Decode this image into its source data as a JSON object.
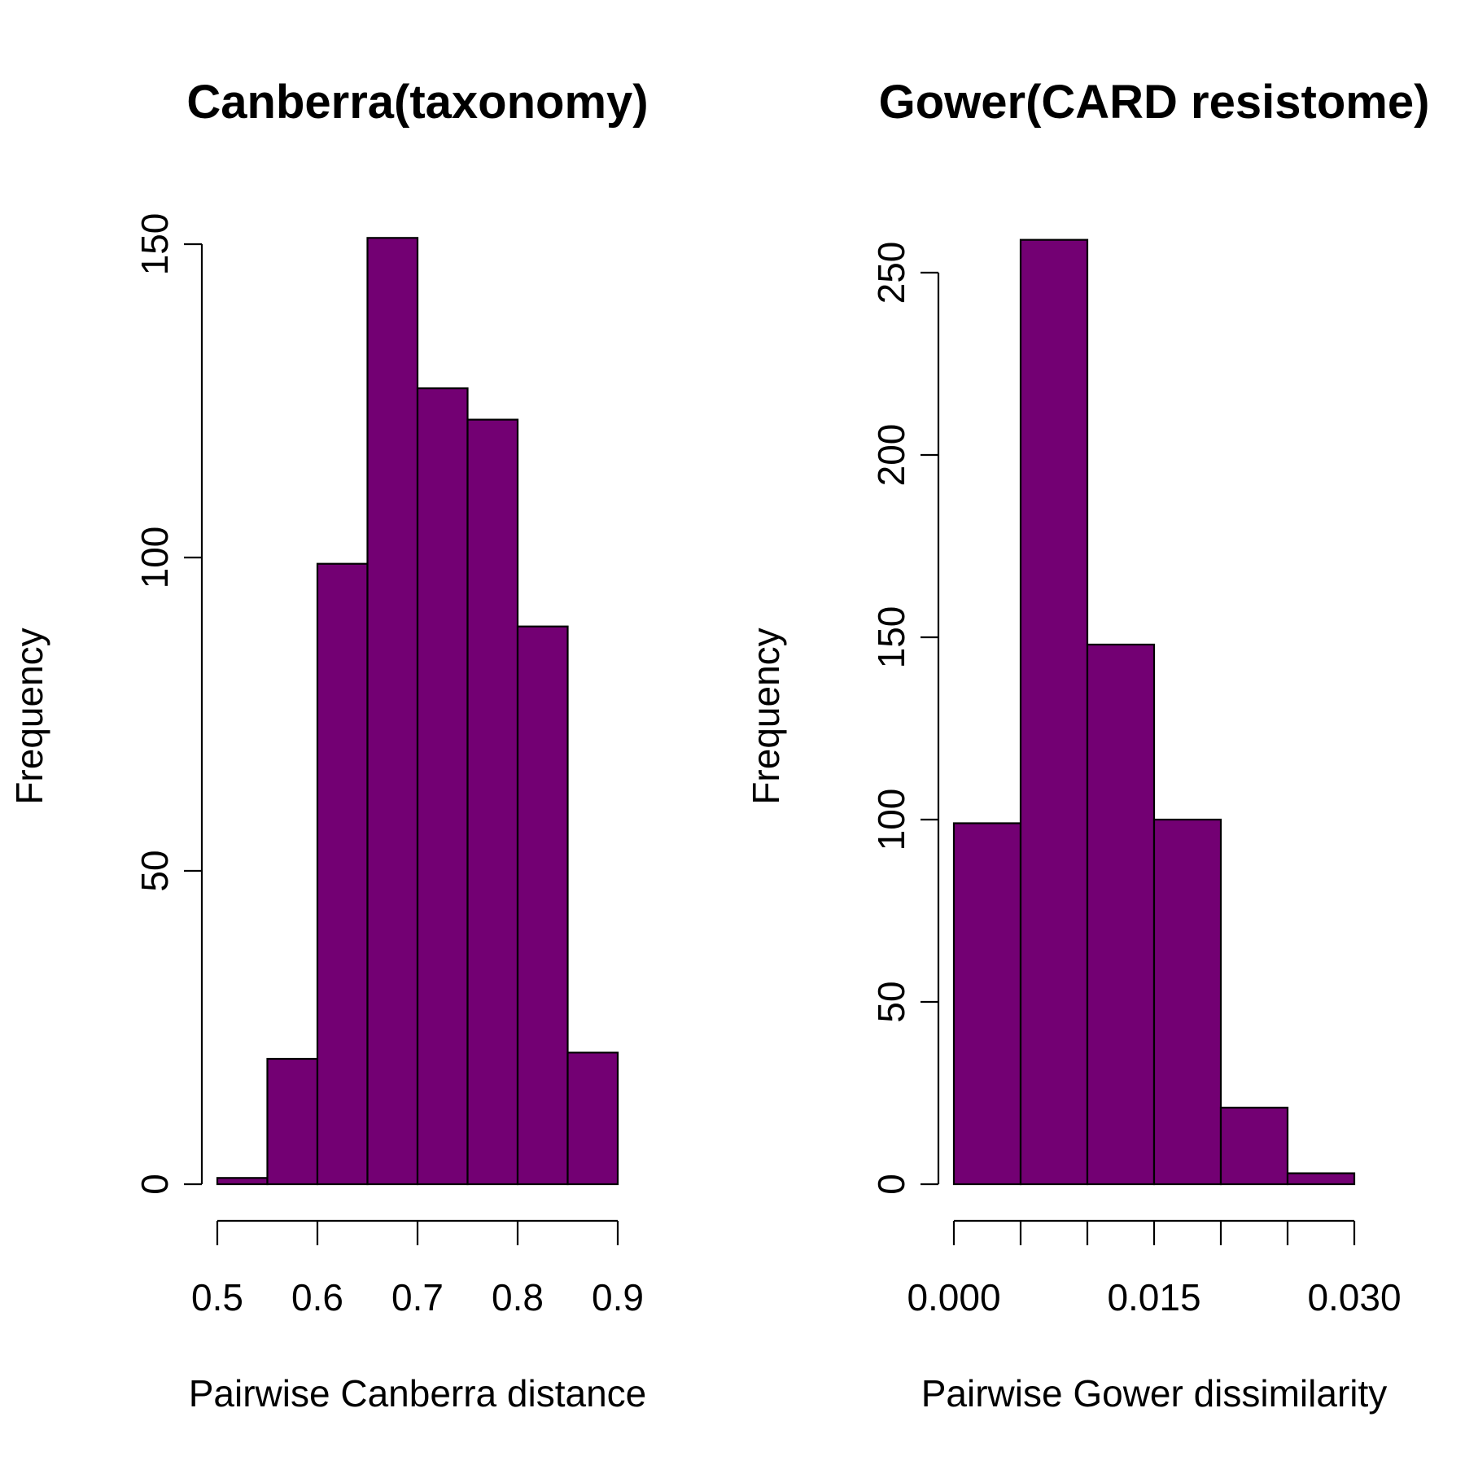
{
  "chart_data": [
    {
      "type": "bar",
      "title": "Canberra(taxonomy)",
      "xlabel": "Pairwise Canberra distance",
      "ylabel": "Frequency",
      "color": "#730073",
      "bins": [
        {
          "x0": 0.5,
          "x1": 0.55,
          "count": 1
        },
        {
          "x0": 0.55,
          "x1": 0.6,
          "count": 20
        },
        {
          "x0": 0.6,
          "x1": 0.65,
          "count": 99
        },
        {
          "x0": 0.65,
          "x1": 0.7,
          "count": 151
        },
        {
          "x0": 0.7,
          "x1": 0.75,
          "count": 127
        },
        {
          "x0": 0.75,
          "x1": 0.8,
          "count": 122
        },
        {
          "x0": 0.8,
          "x1": 0.85,
          "count": 89
        },
        {
          "x0": 0.85,
          "x1": 0.9,
          "count": 21
        }
      ],
      "xlim": [
        0.5,
        0.9
      ],
      "ylim": [
        0,
        150
      ],
      "xtick_values": [
        0.5,
        0.6,
        0.7,
        0.8,
        0.9
      ],
      "xtick_labels": [
        "0.5",
        "0.6",
        "0.7",
        "0.8",
        "0.9"
      ],
      "xtick_label_values": [
        0.5,
        0.6,
        0.7,
        0.8,
        0.9
      ],
      "ytick_values": [
        0,
        50,
        100,
        150
      ],
      "ytick_labels": [
        "0",
        "50",
        "100",
        "150"
      ],
      "grid": false
    },
    {
      "type": "bar",
      "title": "Gower(CARD resistome)",
      "xlabel": "Pairwise Gower dissimilarity",
      "ylabel": "Frequency",
      "color": "#730073",
      "bins": [
        {
          "x0": 0.0,
          "x1": 0.005,
          "count": 99
        },
        {
          "x0": 0.005,
          "x1": 0.01,
          "count": 259
        },
        {
          "x0": 0.01,
          "x1": 0.015,
          "count": 148
        },
        {
          "x0": 0.015,
          "x1": 0.02,
          "count": 100
        },
        {
          "x0": 0.02,
          "x1": 0.025,
          "count": 21
        },
        {
          "x0": 0.025,
          "x1": 0.03,
          "count": 3
        }
      ],
      "xlim": [
        0.0,
        0.03
      ],
      "ylim": [
        0,
        250
      ],
      "xtick_values": [
        0.0,
        0.005,
        0.01,
        0.015,
        0.02,
        0.025,
        0.03
      ],
      "xtick_labels": [
        "0.000",
        "0.015",
        "0.030"
      ],
      "xtick_label_values": [
        0.0,
        0.015,
        0.03
      ],
      "ytick_values": [
        0,
        50,
        100,
        150,
        200,
        250
      ],
      "ytick_labels": [
        "0",
        "50",
        "100",
        "150",
        "200",
        "250"
      ],
      "grid": false
    }
  ]
}
